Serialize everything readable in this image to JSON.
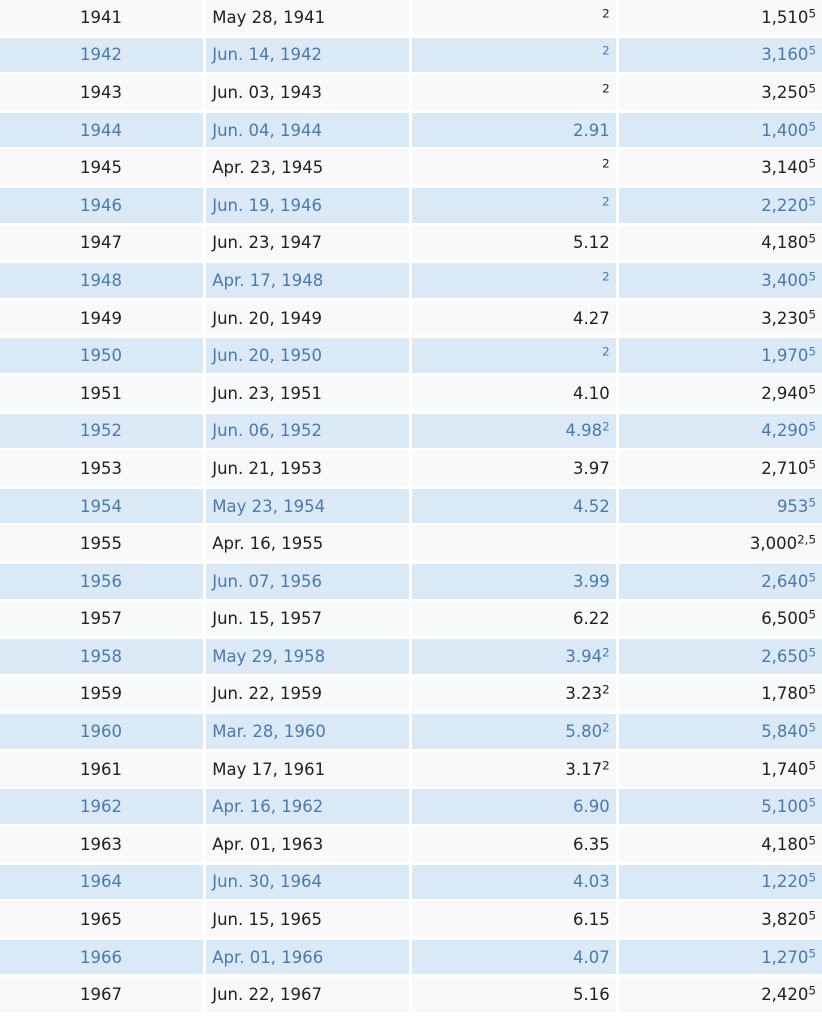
{
  "rows": [
    {
      "year": "1941",
      "date": "May 28, 1941",
      "height": "",
      "height_note": "2",
      "discharge": "1,510",
      "discharge_note": "5"
    },
    {
      "year": "1942",
      "date": "Jun. 14, 1942",
      "height": "",
      "height_note": "2",
      "discharge": "3,160",
      "discharge_note": "5"
    },
    {
      "year": "1943",
      "date": "Jun. 03, 1943",
      "height": "",
      "height_note": "2",
      "discharge": "3,250",
      "discharge_note": "5"
    },
    {
      "year": "1944",
      "date": "Jun. 04, 1944",
      "height": "2.91",
      "height_note": "",
      "discharge": "1,400",
      "discharge_note": "5"
    },
    {
      "year": "1945",
      "date": "Apr. 23, 1945",
      "height": "",
      "height_note": "2",
      "discharge": "3,140",
      "discharge_note": "5"
    },
    {
      "year": "1946",
      "date": "Jun. 19, 1946",
      "height": "",
      "height_note": "2",
      "discharge": "2,220",
      "discharge_note": "5"
    },
    {
      "year": "1947",
      "date": "Jun. 23, 1947",
      "height": "5.12",
      "height_note": "",
      "discharge": "4,180",
      "discharge_note": "5"
    },
    {
      "year": "1948",
      "date": "Apr. 17, 1948",
      "height": "",
      "height_note": "2",
      "discharge": "3,400",
      "discharge_note": "5"
    },
    {
      "year": "1949",
      "date": "Jun. 20, 1949",
      "height": "4.27",
      "height_note": "",
      "discharge": "3,230",
      "discharge_note": "5"
    },
    {
      "year": "1950",
      "date": "Jun. 20, 1950",
      "height": "",
      "height_note": "2",
      "discharge": "1,970",
      "discharge_note": "5"
    },
    {
      "year": "1951",
      "date": "Jun. 23, 1951",
      "height": "4.10",
      "height_note": "",
      "discharge": "2,940",
      "discharge_note": "5"
    },
    {
      "year": "1952",
      "date": "Jun. 06, 1952",
      "height": "4.98",
      "height_note": "2",
      "discharge": "4,290",
      "discharge_note": "5"
    },
    {
      "year": "1953",
      "date": "Jun. 21, 1953",
      "height": "3.97",
      "height_note": "",
      "discharge": "2,710",
      "discharge_note": "5"
    },
    {
      "year": "1954",
      "date": "May 23, 1954",
      "height": "4.52",
      "height_note": "",
      "discharge": "953",
      "discharge_note": "5"
    },
    {
      "year": "1955",
      "date": "Apr. 16, 1955",
      "height": "",
      "height_note": "",
      "discharge": "3,000",
      "discharge_note": "2,5"
    },
    {
      "year": "1956",
      "date": "Jun. 07, 1956",
      "height": "3.99",
      "height_note": "",
      "discharge": "2,640",
      "discharge_note": "5"
    },
    {
      "year": "1957",
      "date": "Jun. 15, 1957",
      "height": "6.22",
      "height_note": "",
      "discharge": "6,500",
      "discharge_note": "5"
    },
    {
      "year": "1958",
      "date": "May 29, 1958",
      "height": "3.94",
      "height_note": "2",
      "discharge": "2,650",
      "discharge_note": "5"
    },
    {
      "year": "1959",
      "date": "Jun. 22, 1959",
      "height": "3.23",
      "height_note": "2",
      "discharge": "1,780",
      "discharge_note": "5"
    },
    {
      "year": "1960",
      "date": "Mar. 28, 1960",
      "height": "5.80",
      "height_note": "2",
      "discharge": "5,840",
      "discharge_note": "5"
    },
    {
      "year": "1961",
      "date": "May 17, 1961",
      "height": "3.17",
      "height_note": "2",
      "discharge": "1,740",
      "discharge_note": "5"
    },
    {
      "year": "1962",
      "date": "Apr. 16, 1962",
      "height": "6.90",
      "height_note": "",
      "discharge": "5,100",
      "discharge_note": "5"
    },
    {
      "year": "1963",
      "date": "Apr. 01, 1963",
      "height": "6.35",
      "height_note": "",
      "discharge": "4,180",
      "discharge_note": "5"
    },
    {
      "year": "1964",
      "date": "Jun. 30, 1964",
      "height": "4.03",
      "height_note": "",
      "discharge": "1,220",
      "discharge_note": "5"
    },
    {
      "year": "1965",
      "date": "Jun. 15, 1965",
      "height": "6.15",
      "height_note": "",
      "discharge": "3,820",
      "discharge_note": "5"
    },
    {
      "year": "1966",
      "date": "Apr. 01, 1966",
      "height": "4.07",
      "height_note": "",
      "discharge": "1,270",
      "discharge_note": "5"
    },
    {
      "year": "1967",
      "date": "Jun. 22, 1967",
      "height": "5.16",
      "height_note": "",
      "discharge": "2,420",
      "discharge_note": "5"
    }
  ]
}
